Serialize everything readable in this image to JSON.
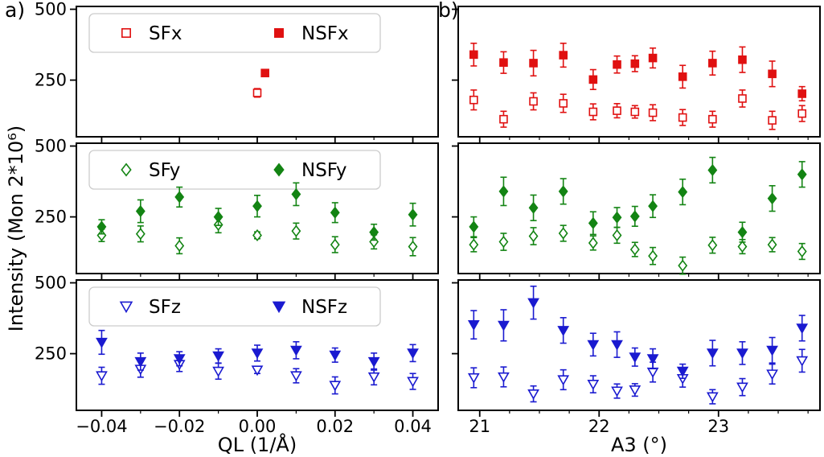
{
  "figure": {
    "background": "#ffffff"
  },
  "chart_data": {
    "type": "scatter",
    "grid": "3 rows x 2 columns, shared axes, error bars",
    "ylabel": "Intensity (Mon 2*10⁶)",
    "ylim": [
      50,
      510
    ],
    "yticks": [
      250,
      500
    ],
    "legend_position": "upper left inside left panels",
    "columns": [
      {
        "label": "a)",
        "xlabel": "QL (1/Å)",
        "xlim": [
          -0.0465,
          0.0465
        ],
        "xticks": [
          -0.04,
          -0.02,
          0,
          0.02,
          0.04
        ],
        "xtick_labels": [
          "−0.04",
          "−0.02",
          "0.00",
          "0.02",
          "0.04"
        ],
        "minor_xticks": [
          -0.03,
          -0.01,
          0.01,
          0.03
        ]
      },
      {
        "label": "b)",
        "xlabel": "A3 (°)",
        "xlim": [
          20.82,
          23.85
        ],
        "xticks": [
          21,
          22,
          23
        ],
        "xtick_labels": [
          "21",
          "22",
          "23"
        ],
        "minor_xticks": [
          21.25,
          21.5,
          21.75,
          22.25,
          22.5,
          22.75,
          23.25,
          23.5,
          23.75
        ]
      }
    ],
    "rows": [
      {
        "color": "#e01010",
        "marker": "square",
        "legend": {
          "sf": "SFx",
          "nsf": "NSFx"
        },
        "panels": [
          {
            "sf": {
              "x": [
                0.0
              ],
              "y": [
                205
              ],
              "err": [
                15
              ]
            },
            "nsf": {
              "x": [
                0.002
              ],
              "y": [
                275
              ],
              "err": [
                12
              ]
            }
          },
          {
            "sf": {
              "x": [
                20.95,
                21.2,
                21.45,
                21.7,
                21.95,
                22.15,
                22.3,
                22.45,
                22.7,
                22.95,
                23.2,
                23.45,
                23.7
              ],
              "y": [
                180,
                112,
                175,
                168,
                138,
                142,
                138,
                135,
                118,
                112,
                185,
                108,
                132
              ],
              "err": [
                35,
                28,
                30,
                32,
                28,
                25,
                22,
                28,
                28,
                28,
                30,
                32,
                28
              ]
            },
            "nsf": {
              "x": [
                20.95,
                21.2,
                21.45,
                21.7,
                21.95,
                22.15,
                22.3,
                22.45,
                22.7,
                22.95,
                23.2,
                23.45,
                23.7
              ],
              "y": [
                340,
                312,
                310,
                338,
                252,
                305,
                308,
                328,
                262,
                310,
                322,
                272,
                202
              ],
              "err": [
                40,
                38,
                45,
                42,
                35,
                30,
                28,
                35,
                40,
                42,
                45,
                45,
                25
              ]
            }
          }
        ]
      },
      {
        "color": "#138413",
        "marker": "diamond",
        "legend": {
          "sf": "SFy",
          "nsf": "NSFy"
        },
        "panels": [
          {
            "sf": {
              "x": [
                -0.04,
                -0.03,
                -0.02,
                -0.01,
                0,
                0.01,
                0.02,
                0.03,
                0.04
              ],
              "y": [
                185,
                190,
                148,
                222,
                185,
                200,
                152,
                162,
                145
              ],
              "err": [
                22,
                28,
                28,
                28,
                12,
                28,
                28,
                25,
                32
              ]
            },
            "nsf": {
              "x": [
                -0.04,
                -0.03,
                -0.02,
                -0.01,
                0,
                0.01,
                0.02,
                0.03,
                0.04
              ],
              "y": [
                215,
                270,
                320,
                250,
                288,
                330,
                265,
                196,
                258
              ],
              "err": [
                25,
                40,
                35,
                30,
                38,
                40,
                35,
                28,
                40
              ]
            }
          },
          {
            "sf": {
              "x": [
                20.95,
                21.2,
                21.45,
                21.7,
                21.95,
                22.15,
                22.3,
                22.45,
                22.7,
                22.95,
                23.2,
                23.45,
                23.7
              ],
              "y": [
                152,
                162,
                182,
                192,
                158,
                185,
                135,
                112,
                78,
                150,
                145,
                152,
                128
              ],
              "err": [
                25,
                30,
                30,
                28,
                25,
                28,
                25,
                30,
                30,
                28,
                25,
                25,
                28
              ]
            },
            "nsf": {
              "x": [
                20.95,
                21.2,
                21.45,
                21.7,
                21.95,
                22.15,
                22.3,
                22.45,
                22.7,
                22.95,
                23.2,
                23.45,
                23.7
              ],
              "y": [
                215,
                340,
                282,
                340,
                228,
                248,
                252,
                288,
                338,
                415,
                196,
                315,
                400
              ],
              "err": [
                35,
                50,
                45,
                45,
                40,
                35,
                35,
                40,
                45,
                45,
                35,
                45,
                45
              ]
            }
          }
        ]
      },
      {
        "color": "#1a1ad0",
        "marker": "triangle-down",
        "legend": {
          "sf": "SFz",
          "nsf": "NSFz"
        },
        "panels": [
          {
            "sf": {
              "x": [
                -0.04,
                -0.03,
                -0.02,
                -0.01,
                0,
                0.01,
                0.02,
                0.03,
                0.04
              ],
              "y": [
                172,
                195,
                212,
                188,
                192,
                172,
                138,
                168,
                152
              ],
              "err": [
                30,
                28,
                25,
                28,
                12,
                25,
                30,
                28,
                28
              ]
            },
            "nsf": {
              "x": [
                -0.04,
                -0.03,
                -0.02,
                -0.01,
                0,
                0.01,
                0.02,
                0.03,
                0.04
              ],
              "y": [
                290,
                222,
                232,
                242,
                252,
                262,
                245,
                222,
                252
              ],
              "err": [
                42,
                30,
                25,
                25,
                28,
                30,
                25,
                30,
                30
              ]
            }
          },
          {
            "sf": {
              "x": [
                20.95,
                21.2,
                21.45,
                21.7,
                21.95,
                22.15,
                22.3,
                22.45,
                22.7,
                22.95,
                23.2,
                23.45,
                23.7
              ],
              "y": [
                165,
                168,
                108,
                158,
                142,
                118,
                122,
                185,
                162,
                98,
                132,
                178,
                225
              ],
              "err": [
                35,
                35,
                28,
                35,
                30,
                25,
                22,
                35,
                30,
                25,
                30,
                35,
                40
              ]
            },
            "nsf": {
              "x": [
                20.95,
                21.2,
                21.45,
                21.7,
                21.95,
                22.15,
                22.3,
                22.45,
                22.7,
                22.95,
                23.2,
                23.45,
                23.7
              ],
              "y": [
                352,
                350,
                430,
                332,
                282,
                282,
                238,
                232,
                188,
                252,
                252,
                262,
                340
              ],
              "err": [
                50,
                55,
                58,
                45,
                40,
                45,
                32,
                35,
                25,
                45,
                40,
                45,
                45
              ]
            }
          }
        ]
      }
    ]
  }
}
